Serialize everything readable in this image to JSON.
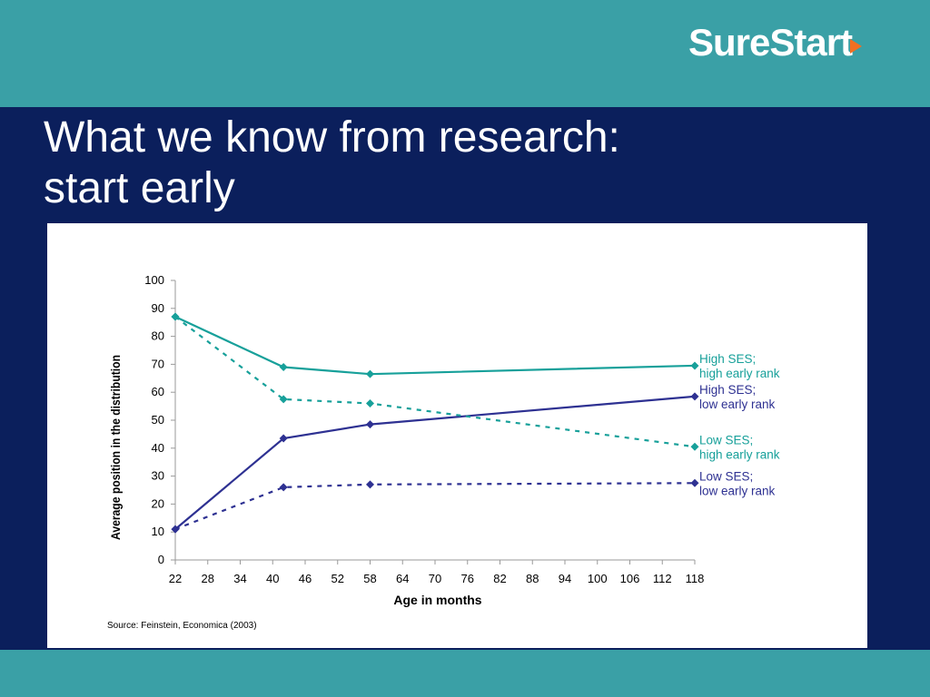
{
  "brand": {
    "logo_text_a": "Sure",
    "logo_text_b": "Start",
    "accent_color": "#3aa0a6",
    "background_color": "#0b1f5c",
    "logo_icon": "play-triangle-icon"
  },
  "slide": {
    "title_line1": "What we know from research:",
    "title_line2": "start early"
  },
  "source_note": "Source: Feinstein, Economica (2003)",
  "chart_data": {
    "type": "line",
    "xlabel": "Age in months",
    "ylabel": "Average position in the distribution",
    "xlim": [
      22,
      118
    ],
    "ylim": [
      0,
      100
    ],
    "xticks": [
      22,
      28,
      34,
      40,
      46,
      52,
      58,
      64,
      70,
      76,
      82,
      88,
      94,
      100,
      106,
      112,
      118
    ],
    "yticks": [
      0,
      10,
      20,
      30,
      40,
      50,
      60,
      70,
      80,
      90,
      100
    ],
    "grid": false,
    "legend_placement": "right, labels at line ends",
    "series": [
      {
        "name_line1": "High SES;",
        "name_line2": "high early rank",
        "color": "#17a09a",
        "style": "solid",
        "x": [
          22,
          42,
          58,
          118
        ],
        "y": [
          87,
          69,
          66.5,
          69.5
        ]
      },
      {
        "name_line1": "High SES;",
        "name_line2": "low early rank",
        "color": "#2e3192",
        "style": "solid",
        "x": [
          22,
          42,
          58,
          118
        ],
        "y": [
          11,
          43.5,
          48.5,
          58.5
        ]
      },
      {
        "name_line1": "Low SES;",
        "name_line2": "high early rank",
        "color": "#17a09a",
        "style": "dashed",
        "x": [
          22,
          42,
          58,
          118
        ],
        "y": [
          87,
          57.5,
          56,
          40.5
        ]
      },
      {
        "name_line1": "Low SES;",
        "name_line2": "low early rank",
        "color": "#2e3192",
        "style": "dashed",
        "x": [
          22,
          42,
          58,
          118
        ],
        "y": [
          11,
          26,
          27,
          27.5
        ]
      }
    ]
  }
}
